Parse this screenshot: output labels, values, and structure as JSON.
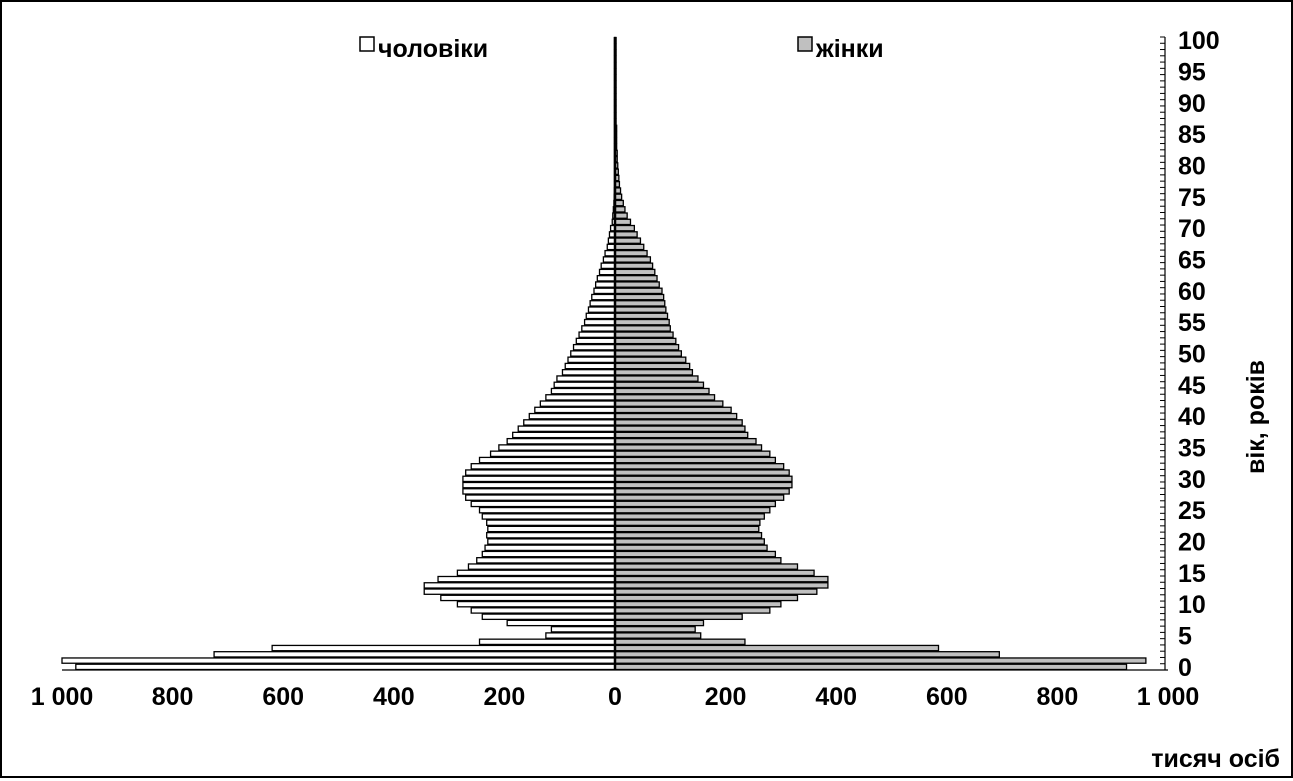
{
  "chart_data": {
    "type": "bar",
    "orientation": "horizontal",
    "layout": "population-pyramid",
    "xlabel": "тисяч осіб",
    "ylabel": "вік, років",
    "xlim": [
      -1000,
      1000
    ],
    "ylim": [
      0,
      100
    ],
    "x_ticks": [
      "1 000",
      "800",
      "600",
      "400",
      "200",
      "0",
      "200",
      "400",
      "600",
      "800",
      "1 000"
    ],
    "y_ticks": [
      "0",
      "5",
      "10",
      "15",
      "20",
      "25",
      "30",
      "35",
      "40",
      "45",
      "50",
      "55",
      "60",
      "65",
      "70",
      "75",
      "80",
      "85",
      "90",
      "95",
      "100"
    ],
    "legend_position": "top",
    "grid": false,
    "ages": [
      0,
      1,
      2,
      3,
      4,
      5,
      6,
      7,
      8,
      9,
      10,
      11,
      12,
      13,
      14,
      15,
      16,
      17,
      18,
      19,
      20,
      21,
      22,
      23,
      24,
      25,
      26,
      27,
      28,
      29,
      30,
      31,
      32,
      33,
      34,
      35,
      36,
      37,
      38,
      39,
      40,
      41,
      42,
      43,
      44,
      45,
      46,
      47,
      48,
      49,
      50,
      51,
      52,
      53,
      54,
      55,
      56,
      57,
      58,
      59,
      60,
      61,
      62,
      63,
      64,
      65,
      66,
      67,
      68,
      69,
      70,
      71,
      72,
      73,
      74,
      75,
      76,
      77,
      78,
      79,
      80,
      81,
      82,
      83,
      84,
      85,
      86,
      87,
      88,
      89,
      90,
      91,
      92,
      93,
      94,
      95,
      96,
      97,
      98,
      99,
      100
    ],
    "series": [
      {
        "name": "чоловіки",
        "color": "#ffffff",
        "values": [
          975,
          1000,
          725,
          620,
          245,
          125,
          115,
          195,
          240,
          260,
          285,
          315,
          345,
          345,
          320,
          285,
          265,
          250,
          240,
          235,
          230,
          232,
          230,
          232,
          240,
          245,
          260,
          270,
          275,
          275,
          275,
          270,
          260,
          245,
          225,
          210,
          195,
          185,
          175,
          165,
          155,
          145,
          135,
          125,
          115,
          110,
          105,
          95,
          90,
          85,
          80,
          75,
          70,
          65,
          60,
          55,
          52,
          48,
          45,
          42,
          38,
          35,
          32,
          28,
          25,
          21,
          18,
          14,
          12,
          10,
          8,
          5,
          4,
          3,
          2,
          1.5,
          1.2,
          1,
          1,
          1,
          1,
          1,
          1,
          1,
          1,
          1,
          1,
          1,
          1,
          1,
          1,
          1,
          1,
          1,
          1,
          1,
          1,
          1,
          1,
          1,
          1
        ]
      },
      {
        "name": "жінки",
        "color": "#c0c0c0",
        "values": [
          925,
          960,
          695,
          585,
          235,
          155,
          145,
          160,
          230,
          280,
          300,
          330,
          365,
          385,
          385,
          360,
          330,
          300,
          290,
          275,
          270,
          265,
          260,
          262,
          270,
          280,
          290,
          305,
          315,
          320,
          320,
          315,
          305,
          290,
          280,
          265,
          255,
          240,
          235,
          230,
          220,
          210,
          195,
          180,
          170,
          160,
          150,
          140,
          135,
          128,
          120,
          115,
          110,
          105,
          100,
          98,
          95,
          92,
          90,
          88,
          85,
          80,
          76,
          72,
          68,
          64,
          58,
          52,
          46,
          40,
          35,
          28,
          22,
          18,
          15,
          12,
          10,
          8,
          7,
          6,
          5,
          4,
          4,
          3,
          3,
          3,
          3,
          2,
          2,
          2,
          2,
          2,
          2,
          2,
          2,
          2,
          2,
          2,
          2,
          2,
          2
        ]
      }
    ]
  }
}
